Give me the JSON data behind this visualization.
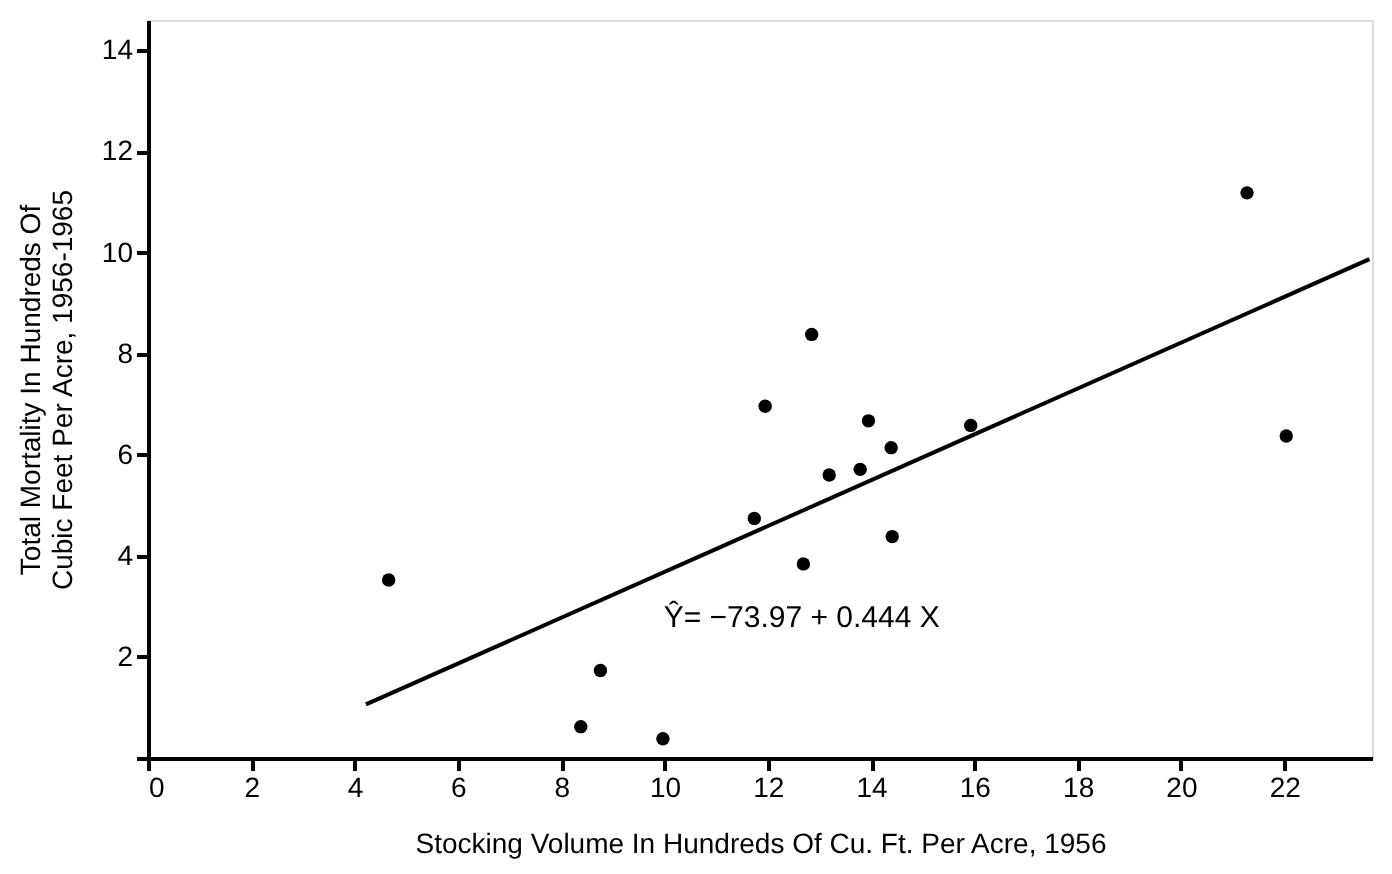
{
  "chart_data": {
    "type": "scatter",
    "xlabel": "Stocking Volume In Hundreds Of Cu. Ft. Per Acre, 1956",
    "ylabel": [
      "Total Mortality In Hundreds Of",
      "Cubic Feet Per Acre, 1956-1965"
    ],
    "xlim": [
      0,
      23.7
    ],
    "ylim": [
      0,
      14.6
    ],
    "xticks": [
      0,
      2,
      4,
      6,
      8,
      10,
      12,
      14,
      16,
      18,
      20,
      22
    ],
    "yticks": [
      {
        "value": 0,
        "label": null
      },
      2,
      4,
      6,
      8,
      10,
      12,
      14
    ],
    "grid": false,
    "series": [
      {
        "color": "#000000",
        "marker": "circle",
        "x": [
          4.66,
          8.38,
          8.76,
          9.97,
          11.74,
          11.95,
          12.69,
          12.85,
          13.19,
          13.79,
          13.95,
          14.39,
          14.41,
          15.93,
          21.28,
          22.04
        ],
        "values": [
          3.52,
          0.62,
          1.73,
          0.38,
          4.74,
          6.96,
          3.84,
          8.38,
          5.6,
          5.71,
          6.67,
          6.14,
          4.38,
          6.58,
          11.18,
          6.37
        ]
      },
      {
        "type": "line",
        "color": "#000000",
        "line_style": "solid",
        "x": [
          4.22,
          23.65
        ],
        "values": [
          1.06,
          9.87
        ]
      }
    ],
    "annotations": [
      "Ŷ= −73.97 + 0.444 X"
    ]
  }
}
